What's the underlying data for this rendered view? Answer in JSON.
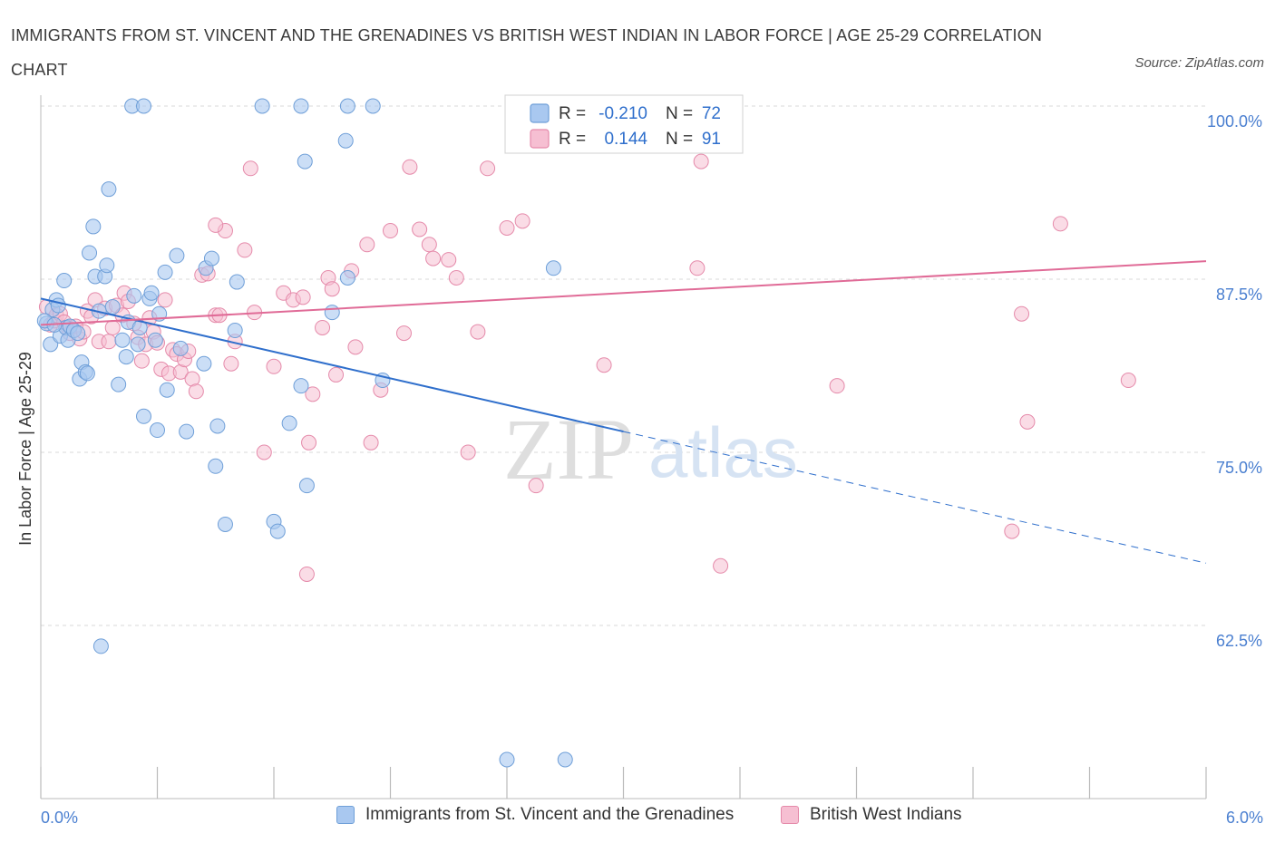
{
  "title": "IMMIGRANTS FROM ST. VINCENT AND THE GRENADINES VS BRITISH WEST INDIAN IN LABOR FORCE | AGE 25-29 CORRELATION CHART",
  "source": "Source: ZipAtlas.com",
  "watermark": {
    "zip": "ZIP",
    "atlas": "atlas"
  },
  "colors": {
    "blue_fill": "#a9c8f0",
    "blue_stroke": "#6f9fd8",
    "blue_line": "#2f6fcc",
    "pink_fill": "#f6bfd2",
    "pink_stroke": "#e58aaa",
    "pink_line": "#e06b97",
    "tick_label": "#4a7fd0",
    "grid": "#d9d9d9"
  },
  "legend_top": [
    {
      "r_label": "R =",
      "r_value": "-0.210",
      "n_label": "N =",
      "n_value": "72"
    },
    {
      "r_label": "R =",
      "r_value": "0.144",
      "n_label": "N =",
      "n_value": "91"
    }
  ],
  "legend_bottom": [
    {
      "label": "Immigrants from St. Vincent and the Grenadines"
    },
    {
      "label": "British West Indians"
    }
  ],
  "chart_data": {
    "type": "scatter",
    "title": "IMMIGRANTS FROM ST. VINCENT AND THE GRENADINES VS BRITISH WEST INDIAN IN LABOR FORCE | AGE 25-29 CORRELATION CHART",
    "xlabel": "",
    "ylabel": "In Labor Force | Age 25-29",
    "xlim": [
      0,
      6
    ],
    "ylim": [
      50,
      103
    ],
    "x_tick_labels": [
      "0.0%",
      "6.0%"
    ],
    "x_ticks": [
      0,
      6
    ],
    "y_ticks": [
      62.5,
      75.0,
      87.5,
      100.0
    ],
    "y_tick_labels": [
      "62.5%",
      "75.0%",
      "87.5%",
      "100.0%"
    ],
    "grid": true,
    "legend_position": "top-center",
    "series": [
      {
        "name": "Immigrants from St. Vincent and the Grenadines",
        "color": "#a9c8f0",
        "r": -0.21,
        "n": 72,
        "trend": {
          "x0": 0.0,
          "y0": 86.1,
          "x1": 3.0,
          "y1": 76.5,
          "dash_x1": 6.0,
          "dash_y1": 67.0
        },
        "points": [
          [
            0.03,
            84.3
          ],
          [
            0.05,
            82.8
          ],
          [
            0.06,
            85.3
          ],
          [
            0.08,
            86.0
          ],
          [
            0.09,
            85.6
          ],
          [
            0.1,
            83.4
          ],
          [
            0.12,
            87.4
          ],
          [
            0.13,
            84.0
          ],
          [
            0.14,
            83.1
          ],
          [
            0.15,
            84.1
          ],
          [
            0.17,
            83.8
          ],
          [
            0.19,
            83.6
          ],
          [
            0.2,
            80.3
          ],
          [
            0.21,
            81.5
          ],
          [
            0.23,
            80.8
          ],
          [
            0.24,
            80.7
          ],
          [
            0.25,
            89.4
          ],
          [
            0.27,
            91.3
          ],
          [
            0.28,
            87.7
          ],
          [
            0.3,
            85.2
          ],
          [
            0.31,
            61.0
          ],
          [
            0.33,
            87.7
          ],
          [
            0.34,
            88.5
          ],
          [
            0.35,
            94.0
          ],
          [
            0.37,
            85.5
          ],
          [
            0.4,
            79.9
          ],
          [
            0.42,
            83.1
          ],
          [
            0.44,
            81.9
          ],
          [
            0.45,
            84.4
          ],
          [
            0.48,
            86.3
          ],
          [
            0.5,
            82.8
          ],
          [
            0.51,
            84.0
          ],
          [
            0.53,
            77.6
          ],
          [
            0.56,
            86.1
          ],
          [
            0.57,
            86.5
          ],
          [
            0.59,
            83.1
          ],
          [
            0.6,
            76.6
          ],
          [
            0.61,
            85.0
          ],
          [
            0.64,
            88.0
          ],
          [
            0.65,
            79.5
          ],
          [
            0.7,
            89.2
          ],
          [
            0.72,
            82.5
          ],
          [
            0.75,
            76.5
          ],
          [
            0.84,
            81.4
          ],
          [
            0.85,
            88.3
          ],
          [
            0.88,
            89.0
          ],
          [
            0.9,
            74.0
          ],
          [
            0.91,
            76.9
          ],
          [
            0.95,
            69.8
          ],
          [
            1.0,
            83.8
          ],
          [
            1.01,
            87.3
          ],
          [
            1.2,
            70.0
          ],
          [
            1.22,
            69.3
          ],
          [
            1.28,
            77.1
          ],
          [
            1.34,
            79.8
          ],
          [
            1.36,
            96.0
          ],
          [
            1.37,
            72.6
          ],
          [
            1.5,
            85.1
          ],
          [
            1.57,
            97.5
          ],
          [
            1.58,
            87.6
          ],
          [
            1.76,
            80.2
          ],
          [
            2.4,
            50.0
          ],
          [
            2.7,
            50.0
          ],
          [
            2.64,
            88.3
          ],
          [
            0.47,
            100
          ],
          [
            0.53,
            100
          ],
          [
            1.14,
            100
          ],
          [
            1.34,
            100
          ],
          [
            1.58,
            100
          ],
          [
            1.71,
            100
          ],
          [
            0.02,
            84.5
          ],
          [
            0.07,
            84.2
          ]
        ]
      },
      {
        "name": "British West Indians",
        "color": "#f6bfd2",
        "r": 0.144,
        "n": 91,
        "trend": {
          "x0": 0.0,
          "y0": 84.2,
          "x1": 6.0,
          "y1": 88.8
        },
        "points": [
          [
            0.03,
            85.5
          ],
          [
            0.05,
            84.2
          ],
          [
            0.07,
            84.5
          ],
          [
            0.08,
            84.9
          ],
          [
            0.1,
            85.0
          ],
          [
            0.12,
            84.4
          ],
          [
            0.14,
            84.0
          ],
          [
            0.15,
            83.6
          ],
          [
            0.18,
            84.1
          ],
          [
            0.2,
            83.2
          ],
          [
            0.22,
            83.7
          ],
          [
            0.24,
            85.2
          ],
          [
            0.26,
            84.8
          ],
          [
            0.28,
            86.0
          ],
          [
            0.3,
            83.0
          ],
          [
            0.33,
            85.4
          ],
          [
            0.35,
            83.0
          ],
          [
            0.37,
            84.0
          ],
          [
            0.39,
            85.6
          ],
          [
            0.42,
            84.9
          ],
          [
            0.43,
            86.5
          ],
          [
            0.45,
            85.9
          ],
          [
            0.48,
            84.3
          ],
          [
            0.5,
            83.3
          ],
          [
            0.52,
            81.6
          ],
          [
            0.54,
            82.8
          ],
          [
            0.56,
            84.7
          ],
          [
            0.58,
            83.7
          ],
          [
            0.6,
            82.9
          ],
          [
            0.62,
            81.0
          ],
          [
            0.64,
            86.0
          ],
          [
            0.66,
            80.7
          ],
          [
            0.68,
            82.4
          ],
          [
            0.7,
            82.1
          ],
          [
            0.72,
            80.8
          ],
          [
            0.74,
            81.7
          ],
          [
            0.76,
            82.3
          ],
          [
            0.78,
            80.3
          ],
          [
            0.8,
            79.4
          ],
          [
            0.83,
            87.8
          ],
          [
            0.86,
            87.9
          ],
          [
            0.9,
            84.9
          ],
          [
            0.92,
            84.9
          ],
          [
            0.95,
            91.0
          ],
          [
            0.98,
            81.4
          ],
          [
            1.0,
            83.0
          ],
          [
            1.05,
            89.6
          ],
          [
            1.08,
            95.5
          ],
          [
            1.1,
            85.1
          ],
          [
            1.15,
            75.0
          ],
          [
            1.2,
            81.2
          ],
          [
            1.25,
            86.5
          ],
          [
            1.3,
            86.0
          ],
          [
            1.35,
            86.2
          ],
          [
            1.38,
            75.7
          ],
          [
            1.4,
            79.2
          ],
          [
            1.45,
            84.0
          ],
          [
            1.48,
            87.6
          ],
          [
            1.5,
            86.8
          ],
          [
            1.52,
            80.6
          ],
          [
            1.6,
            88.1
          ],
          [
            1.62,
            82.6
          ],
          [
            1.68,
            90.0
          ],
          [
            1.7,
            75.7
          ],
          [
            1.75,
            79.5
          ],
          [
            1.8,
            91.0
          ],
          [
            1.87,
            83.6
          ],
          [
            1.9,
            95.6
          ],
          [
            1.95,
            91.1
          ],
          [
            2.0,
            90.0
          ],
          [
            2.02,
            89.0
          ],
          [
            2.1,
            88.9
          ],
          [
            2.14,
            87.6
          ],
          [
            2.2,
            75.0
          ],
          [
            2.25,
            83.7
          ],
          [
            2.3,
            95.5
          ],
          [
            2.4,
            91.2
          ],
          [
            2.48,
            91.7
          ],
          [
            2.55,
            72.6
          ],
          [
            2.9,
            81.3
          ],
          [
            3.38,
            88.3
          ],
          [
            3.4,
            96.0
          ],
          [
            3.5,
            66.8
          ],
          [
            4.1,
            79.8
          ],
          [
            5.05,
            85.0
          ],
          [
            5.08,
            77.2
          ],
          [
            5.25,
            91.5
          ],
          [
            5.6,
            80.2
          ],
          [
            0.9,
            91.4
          ],
          [
            1.37,
            66.2
          ],
          [
            5.0,
            69.3
          ]
        ]
      }
    ],
    "top_points_note": ""
  }
}
